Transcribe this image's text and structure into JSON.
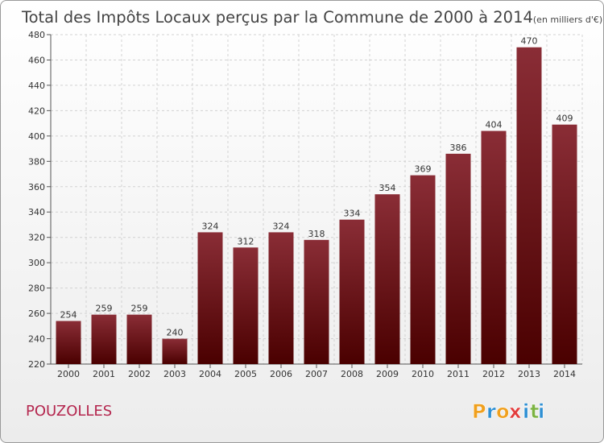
{
  "chart_data": {
    "type": "bar",
    "title": "Total des Impôts Locaux perçus par la Commune de 2000 à 2014",
    "unit_note": "(en milliers d'€)",
    "categories": [
      "2000",
      "2001",
      "2002",
      "2003",
      "2004",
      "2005",
      "2006",
      "2007",
      "2008",
      "2009",
      "2010",
      "2011",
      "2012",
      "2013",
      "2014"
    ],
    "values": [
      254,
      259,
      259,
      240,
      324,
      312,
      324,
      318,
      334,
      354,
      369,
      386,
      404,
      470,
      409
    ],
    "ylim": [
      220,
      480
    ],
    "yticks": [
      220,
      240,
      260,
      280,
      300,
      320,
      340,
      360,
      380,
      400,
      420,
      440,
      460,
      480
    ],
    "grid": true,
    "bar_color_top": "#8a2d36",
    "bar_color_bottom": "#4a0000"
  },
  "commune_name": "POUZOLLES",
  "brand": {
    "letters": [
      "P",
      "r",
      "o",
      "x",
      "i",
      "t",
      "i"
    ],
    "colors": [
      "#f0a01e",
      "#2e8fd3",
      "#f0a01e",
      "#e23b3b",
      "#2e8fd3",
      "#7cb342",
      "#2e8fd3"
    ]
  }
}
